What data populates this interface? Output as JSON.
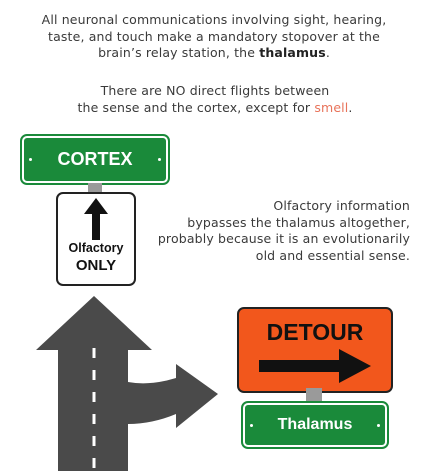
{
  "intro": {
    "line1": "All neuronal communications involving sight, hearing,",
    "line2": "taste, and touch make a mandatory stopover at the",
    "line3_pre": "brain’s relay station, the ",
    "line3_bold": "thalamus",
    "line3_post": "."
  },
  "nodirect": {
    "line1": "There are NO direct flights between",
    "line2_pre": "the sense and the cortex, except for ",
    "line2_accent": "smell",
    "line2_post": "."
  },
  "olfactory_info": {
    "line1": "Olfactory information",
    "line2": "bypasses the thalamus altogether,",
    "line3": "probably because it is an evolutionarily",
    "line4": "old and essential sense."
  },
  "cortex_sign": {
    "label": "CORTEX"
  },
  "olfactory_sign": {
    "label": "Olfactory",
    "sublabel": "ONLY",
    "icon": "up-arrow-icon"
  },
  "detour_sign": {
    "label": "DETOUR",
    "icon": "right-arrow-icon"
  },
  "thalamus_sign": {
    "label": "Thalamus"
  },
  "colors": {
    "green_sign": "#1a8a3a",
    "detour_orange": "#f2571c",
    "road": "#4a4a4a",
    "accent": "#e8735a"
  }
}
